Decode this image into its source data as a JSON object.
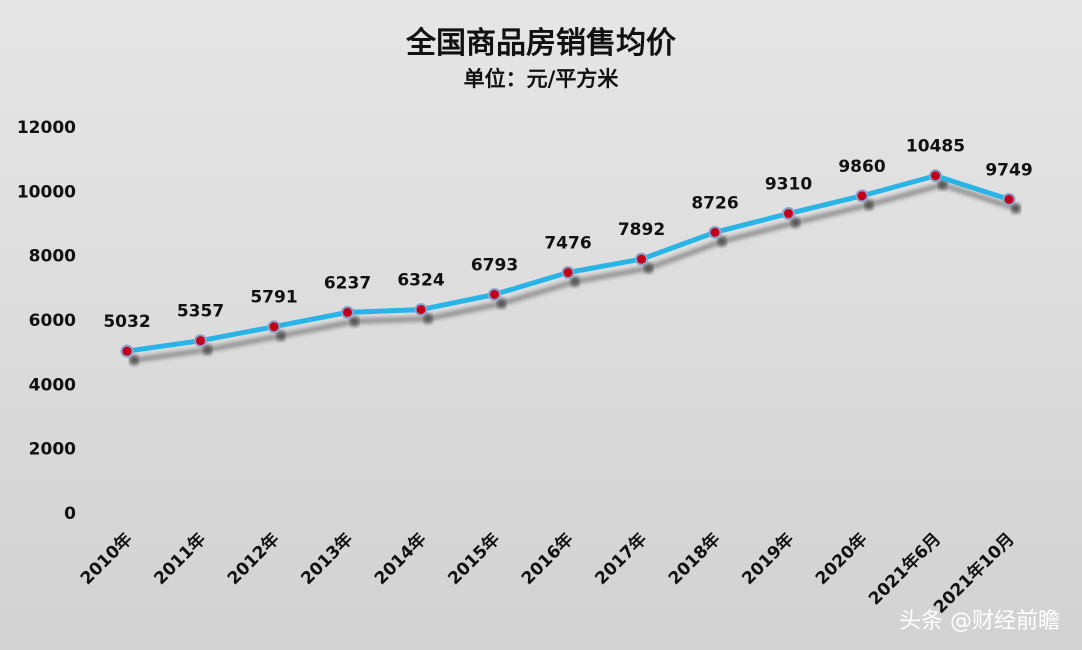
{
  "chart_data": {
    "type": "line",
    "title": "全国商品房销售均价",
    "subtitle": "单位：元/平方米",
    "categories": [
      "2010年",
      "2011年",
      "2012年",
      "2013年",
      "2014年",
      "2015年",
      "2016年",
      "2017年",
      "2018年",
      "2019年",
      "2020年",
      "2021年6月",
      "2021年10月"
    ],
    "series": [
      {
        "values": [
          5032,
          5357,
          5791,
          6237,
          6324,
          6793,
          7476,
          7892,
          8726,
          9310,
          9860,
          10485,
          9749
        ]
      }
    ],
    "data_labels": [
      "5032",
      "5357",
      "5791",
      "6237",
      "6324",
      "6793",
      "7476",
      "7892",
      "8726",
      "9310",
      "9860",
      "10485",
      "9749"
    ],
    "ylim": [
      0,
      12000
    ],
    "yticks": [
      "0",
      "2000",
      "4000",
      "6000",
      "8000",
      "10000",
      "12000"
    ],
    "grid": false,
    "legend": "none",
    "colors": {
      "line": "#29b4e8",
      "marker": "#c0001c",
      "marker_edge": "#8da2c9",
      "shadow": "#7f7f7f"
    }
  },
  "watermark": "头条 @财经前瞻"
}
